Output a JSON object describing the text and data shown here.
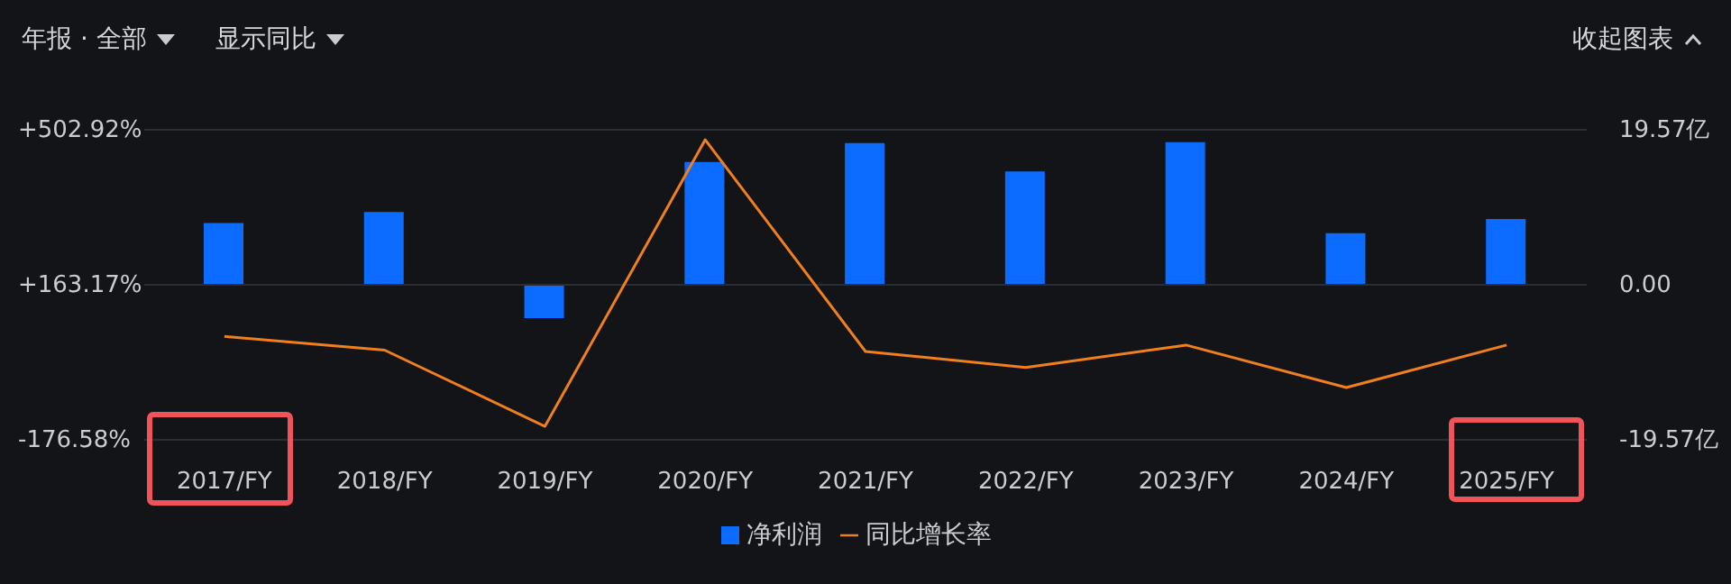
{
  "chart_data": {
    "type": "bar",
    "categories": [
      "2017/FY",
      "2018/FY",
      "2019/FY",
      "2020/FY",
      "2021/FY",
      "2022/FY",
      "2023/FY",
      "2024/FY",
      "2025/FY"
    ],
    "series": [
      {
        "name": "净利润",
        "axis": "y2",
        "color": "#0b6cff",
        "values": [
          7.8,
          9.2,
          -4.2,
          15.5,
          17.9,
          14.3,
          18.0,
          6.5,
          8.3
        ]
      },
      {
        "name": "同比增长率",
        "type": "line",
        "axis": "y",
        "color": "#f07f1e",
        "marker": "none",
        "line_style": "solid",
        "values": [
          50,
          20,
          -147,
          481,
          17,
          -18,
          31,
          -62,
          31
        ]
      }
    ],
    "ylim": [
      -176.58,
      502.92
    ],
    "yticks": [
      {
        "value": -176.58,
        "label": "-176.58%"
      },
      {
        "value": 163.17,
        "label": "+163.17%"
      },
      {
        "value": 502.92,
        "label": "+502.92%"
      }
    ],
    "y2lim": [
      -19.57,
      19.57
    ],
    "y2ticks": [
      {
        "value": -19.57,
        "label": "-19.57亿"
      },
      {
        "value": 0,
        "label": "0.00"
      },
      {
        "value": 19.57,
        "label": "19.57亿"
      }
    ],
    "grid": "y",
    "legend": "bottom",
    "annotations": [
      "年报 · 全部",
      "显示同比",
      "收起图表"
    ]
  }
}
